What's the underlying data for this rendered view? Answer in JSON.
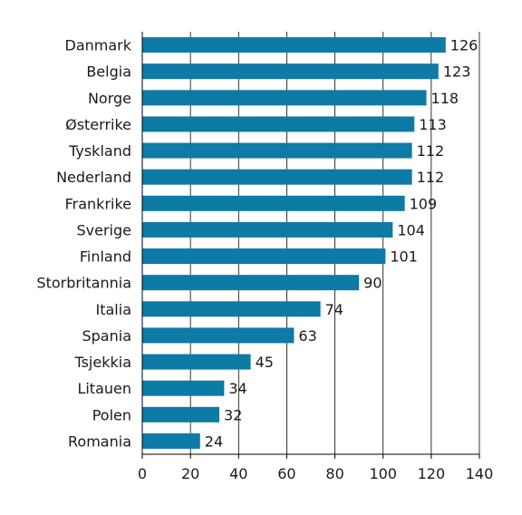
{
  "chart_data": {
    "type": "bar",
    "orientation": "horizontal",
    "categories": [
      "Danmark",
      "Belgia",
      "Norge",
      "Østerrike",
      "Tyskland",
      "Nederland",
      "Frankrike",
      "Sverige",
      "Finland",
      "Storbritannia",
      "Italia",
      "Spania",
      "Tsjekkia",
      "Litauen",
      "Polen",
      "Romania"
    ],
    "values": [
      126,
      123,
      118,
      113,
      112,
      112,
      109,
      104,
      101,
      90,
      74,
      63,
      45,
      34,
      32,
      24
    ],
    "value_labels": [
      "126",
      "123",
      "118",
      "113",
      "112",
      "112",
      "109",
      "104",
      "101",
      "90",
      "74",
      "63",
      "45",
      "34",
      "32",
      "24"
    ],
    "xlim": [
      0,
      140
    ],
    "xticks": [
      0,
      20,
      40,
      60,
      80,
      100,
      120,
      140
    ],
    "xtick_labels": [
      "0",
      "20",
      "40",
      "60",
      "80",
      "100",
      "120",
      "140"
    ],
    "grid": "vertical",
    "title": "",
    "xlabel": "",
    "ylabel": "",
    "bar_color": "#0e7aa6"
  }
}
